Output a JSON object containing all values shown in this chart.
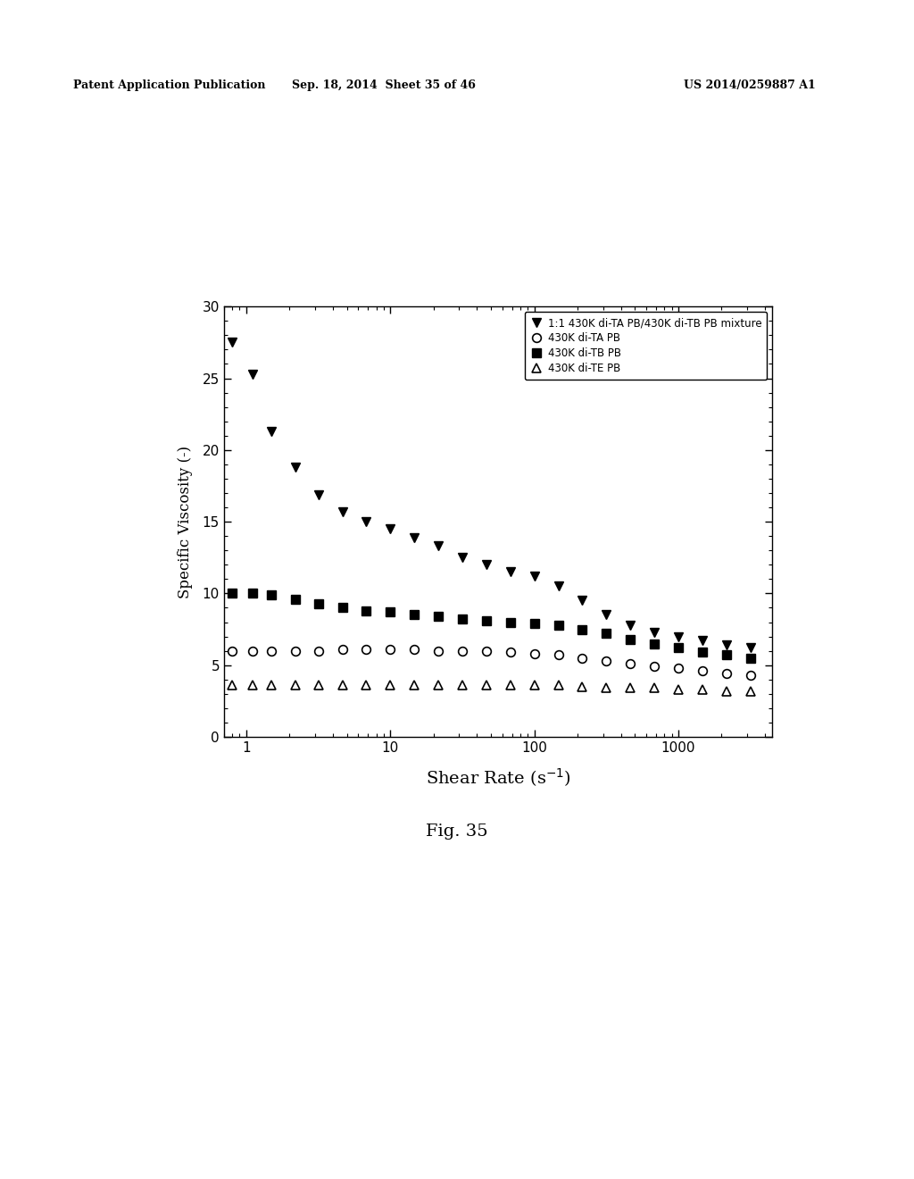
{
  "title": "",
  "xlabel": "Shear Rate (s$^{-1}$)",
  "ylabel": "Specific Viscosity (-)",
  "xlim_log": [
    0.7,
    4000
  ],
  "ylim": [
    0,
    30
  ],
  "yticks": [
    0,
    5,
    10,
    15,
    20,
    25,
    30
  ],
  "background_color": "#ffffff",
  "header_left": "Patent Application Publication",
  "header_mid": "Sep. 18, 2014  Sheet 35 of 46",
  "header_right": "US 2014/0259887 A1",
  "fig_label": "Fig. 35",
  "series": [
    {
      "label": "1:1 430K di-TA PB/430K di-TB PB mixture",
      "marker": "v",
      "color": "black",
      "fillstyle": "full",
      "markersize": 7,
      "x": [
        0.8,
        1.1,
        1.5,
        2.2,
        3.2,
        4.7,
        6.8,
        10,
        14.7,
        21.5,
        31.6,
        46.4,
        68.1,
        100,
        147,
        215,
        316,
        464,
        681,
        1000,
        1468,
        2154,
        3162
      ],
      "y": [
        27.5,
        25.3,
        21.3,
        18.8,
        16.9,
        15.7,
        15.0,
        14.5,
        13.9,
        13.3,
        12.5,
        12.0,
        11.5,
        11.2,
        10.5,
        9.5,
        8.5,
        7.8,
        7.3,
        7.0,
        6.7,
        6.4,
        6.2
      ]
    },
    {
      "label": "430K di-TA PB",
      "marker": "o",
      "color": "black",
      "fillstyle": "none",
      "markersize": 7,
      "x": [
        0.8,
        1.1,
        1.5,
        2.2,
        3.2,
        4.7,
        6.8,
        10,
        14.7,
        21.5,
        31.6,
        46.4,
        68.1,
        100,
        147,
        215,
        316,
        464,
        681,
        1000,
        1468,
        2154,
        3162
      ],
      "y": [
        6.0,
        6.0,
        6.0,
        6.0,
        6.0,
        6.1,
        6.1,
        6.1,
        6.1,
        6.0,
        6.0,
        6.0,
        5.9,
        5.8,
        5.7,
        5.5,
        5.3,
        5.1,
        4.9,
        4.8,
        4.6,
        4.4,
        4.3
      ]
    },
    {
      "label": "430K di-TB PB",
      "marker": "s",
      "color": "black",
      "fillstyle": "full",
      "markersize": 7,
      "x": [
        0.8,
        1.1,
        1.5,
        2.2,
        3.2,
        4.7,
        6.8,
        10,
        14.7,
        21.5,
        31.6,
        46.4,
        68.1,
        100,
        147,
        215,
        316,
        464,
        681,
        1000,
        1468,
        2154,
        3162
      ],
      "y": [
        10.0,
        10.0,
        9.9,
        9.6,
        9.3,
        9.0,
        8.8,
        8.7,
        8.5,
        8.4,
        8.2,
        8.1,
        8.0,
        7.9,
        7.8,
        7.5,
        7.2,
        6.8,
        6.5,
        6.2,
        5.9,
        5.7,
        5.5
      ]
    },
    {
      "label": "430K di-TE PB",
      "marker": "^",
      "color": "black",
      "fillstyle": "none",
      "markersize": 7,
      "x": [
        0.8,
        1.1,
        1.5,
        2.2,
        3.2,
        4.7,
        6.8,
        10,
        14.7,
        21.5,
        31.6,
        46.4,
        68.1,
        100,
        147,
        215,
        316,
        464,
        681,
        1000,
        1468,
        2154,
        3162
      ],
      "y": [
        3.6,
        3.6,
        3.6,
        3.6,
        3.6,
        3.6,
        3.6,
        3.6,
        3.6,
        3.6,
        3.6,
        3.6,
        3.6,
        3.6,
        3.6,
        3.5,
        3.4,
        3.4,
        3.4,
        3.3,
        3.3,
        3.2,
        3.2
      ]
    }
  ]
}
